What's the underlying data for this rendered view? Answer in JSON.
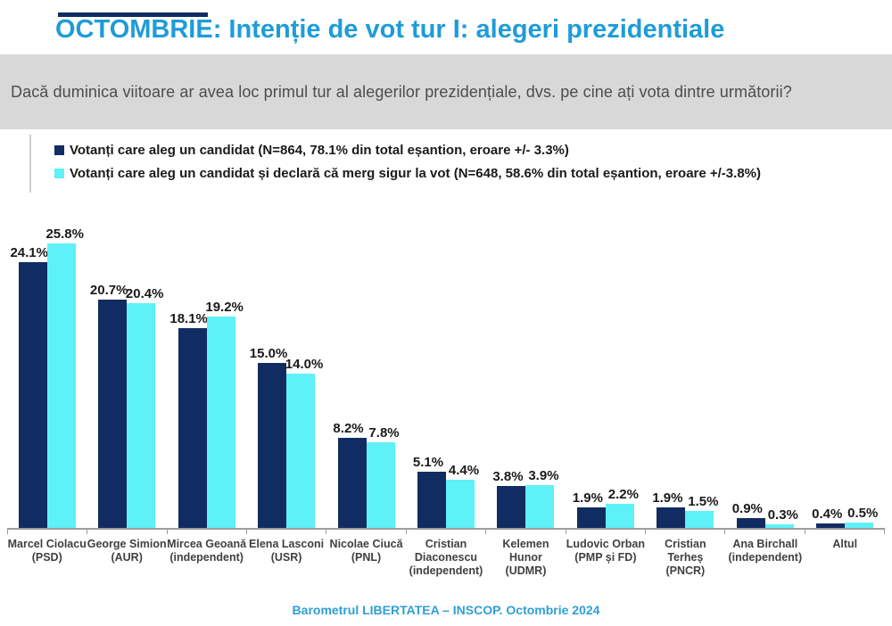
{
  "title": "OCTOMBRIE: Intenție de vot tur I: alegeri prezidentiale",
  "question": "Dacă duminica viitoare ar avea loc primul tur al alegerilor prezidențiale, dvs. pe cine ați vota dintre următorii?",
  "legend": [
    {
      "label": "Votanți care aleg un candidat (N=864, 78.1% din total eșantion, eroare +/- 3.3%)",
      "color": "#112C62"
    },
    {
      "label": "Votanți care aleg un candidat și declară că merg sigur la vot (N=648, 58.6% din total eșantion, eroare +/-3.8%)",
      "color": "#5EF1F7"
    }
  ],
  "footer": "Barometrul LIBERTATEA – INSCOP. Octombrie 2024",
  "colors": {
    "title": "#1E9CD8",
    "question_bg": "#D8D8D8",
    "question_text": "#4D4D4D",
    "series1": "#112C62",
    "series2": "#5EF1F7",
    "value_label": "#1A1A1A",
    "axis": "#9C9C9C",
    "category_label": "#404040",
    "footer": "#2F9FD6"
  },
  "chart_data": {
    "type": "bar",
    "title": "OCTOMBRIE: Intenție de vot tur I: alegeri prezidentiale",
    "categories": [
      [
        "Marcel Ciolacu",
        "(PSD)"
      ],
      [
        "George Simion",
        "(AUR)"
      ],
      [
        "Mircea Geoană",
        "(independent)"
      ],
      [
        "Elena Lasconi",
        "(USR)"
      ],
      [
        "Nicolae Ciucă",
        "(PNL)"
      ],
      [
        "Cristian",
        "Diaconescu",
        "(independent)"
      ],
      [
        "Kelemen Hunor",
        "(UDMR)"
      ],
      [
        "Ludovic Orban",
        "(PMP și FD)"
      ],
      [
        "Cristian Terheș",
        "(PNCR)"
      ],
      [
        "Ana Birchall",
        "(independent)"
      ],
      [
        "Altul"
      ]
    ],
    "series": [
      {
        "name": "Votanți care aleg un candidat (N=864, 78.1% din total eșantion, eroare +/- 3.3%)",
        "color": "#112C62",
        "values": [
          24.1,
          20.7,
          18.1,
          15.0,
          8.2,
          5.1,
          3.8,
          1.9,
          1.9,
          0.9,
          0.4
        ]
      },
      {
        "name": "Votanți care aleg un candidat și declară că merg sigur la vot (N=648, 58.6% din total eșantion, eroare +/-3.8%)",
        "color": "#5EF1F7",
        "values": [
          25.8,
          20.4,
          19.2,
          14.0,
          7.8,
          4.4,
          3.9,
          2.2,
          1.5,
          0.3,
          0.5
        ]
      }
    ],
    "value_suffix": "%",
    "xlabel": "",
    "ylabel": "",
    "ylim": [
      0,
      27.5
    ],
    "grid": false,
    "legend_position": "top-left",
    "value_labels": "above-bars"
  }
}
